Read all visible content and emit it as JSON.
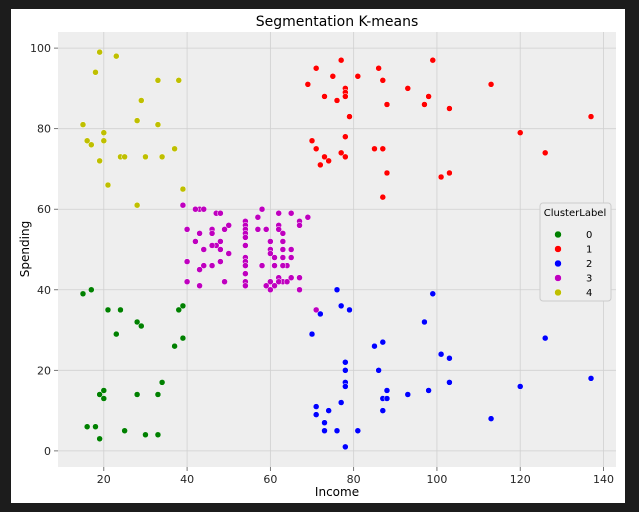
{
  "chart_data": {
    "type": "scatter",
    "title": "Segmentation K-means",
    "xlabel": "Income",
    "ylabel": "Spending",
    "xlim": [
      9,
      143
    ],
    "ylim": [
      -4,
      104
    ],
    "xticks": [
      "20",
      "40",
      "60",
      "80",
      "100",
      "120",
      "140"
    ],
    "yticks": [
      "0",
      "20",
      "40",
      "60",
      "80",
      "100"
    ],
    "grid": true,
    "legend": {
      "title": "ClusterLabel",
      "placement": "right"
    },
    "series": [
      {
        "name": "0",
        "color": "#008000",
        "points": [
          [
            15,
            39
          ],
          [
            17,
            40
          ],
          [
            21,
            35
          ],
          [
            24,
            35
          ],
          [
            28,
            32
          ],
          [
            29,
            31
          ],
          [
            23,
            29
          ],
          [
            39,
            36
          ],
          [
            38,
            35
          ],
          [
            39,
            28
          ],
          [
            37,
            26
          ],
          [
            34,
            17
          ],
          [
            33,
            14
          ],
          [
            28,
            14
          ],
          [
            19,
            14
          ],
          [
            20,
            15
          ],
          [
            20,
            13
          ],
          [
            16,
            6
          ],
          [
            18,
            6
          ],
          [
            25,
            5
          ],
          [
            30,
            4
          ],
          [
            33,
            4
          ],
          [
            19,
            3
          ]
        ]
      },
      {
        "name": "1",
        "color": "#ff0000",
        "points": [
          [
            77,
            97
          ],
          [
            99,
            97
          ],
          [
            71,
            95
          ],
          [
            86,
            95
          ],
          [
            75,
            93
          ],
          [
            81,
            93
          ],
          [
            87,
            92
          ],
          [
            69,
            91
          ],
          [
            113,
            91
          ],
          [
            78,
            90
          ],
          [
            78,
            89
          ],
          [
            93,
            90
          ],
          [
            73,
            88
          ],
          [
            78,
            88
          ],
          [
            98,
            88
          ],
          [
            76,
            87
          ],
          [
            88,
            86
          ],
          [
            97,
            86
          ],
          [
            103,
            85
          ],
          [
            79,
            83
          ],
          [
            137,
            83
          ],
          [
            120,
            79
          ],
          [
            78,
            78
          ],
          [
            70,
            77
          ],
          [
            71,
            75
          ],
          [
            85,
            75
          ],
          [
            87,
            75
          ],
          [
            126,
            74
          ],
          [
            77,
            74
          ],
          [
            73,
            73
          ],
          [
            78,
            73
          ],
          [
            74,
            72
          ],
          [
            72,
            71
          ],
          [
            88,
            69
          ],
          [
            103,
            69
          ],
          [
            101,
            68
          ],
          [
            87,
            63
          ]
        ]
      },
      {
        "name": "2",
        "color": "#0000ff",
        "points": [
          [
            76,
            40
          ],
          [
            99,
            39
          ],
          [
            79,
            35
          ],
          [
            71,
            35
          ],
          [
            72,
            34
          ],
          [
            77,
            36
          ],
          [
            97,
            32
          ],
          [
            70,
            29
          ],
          [
            126,
            28
          ],
          [
            87,
            27
          ],
          [
            85,
            26
          ],
          [
            101,
            24
          ],
          [
            103,
            23
          ],
          [
            78,
            22
          ],
          [
            78,
            20
          ],
          [
            86,
            20
          ],
          [
            137,
            18
          ],
          [
            78,
            17
          ],
          [
            103,
            17
          ],
          [
            78,
            16
          ],
          [
            120,
            16
          ],
          [
            88,
            15
          ],
          [
            98,
            15
          ],
          [
            93,
            14
          ],
          [
            87,
            13
          ],
          [
            88,
            13
          ],
          [
            77,
            12
          ],
          [
            71,
            11
          ],
          [
            74,
            10
          ],
          [
            87,
            10
          ],
          [
            71,
            9
          ],
          [
            113,
            8
          ],
          [
            73,
            7
          ],
          [
            73,
            5
          ],
          [
            76,
            5
          ],
          [
            81,
            5
          ],
          [
            78,
            1
          ]
        ]
      },
      {
        "name": "3",
        "color": "#bf00bf",
        "points": [
          [
            39,
            61
          ],
          [
            43,
            60
          ],
          [
            42,
            60
          ],
          [
            58,
            60
          ],
          [
            47,
            59
          ],
          [
            48,
            59
          ],
          [
            62,
            59
          ],
          [
            65,
            59
          ],
          [
            69,
            58
          ],
          [
            57,
            58
          ],
          [
            54,
            57
          ],
          [
            67,
            57
          ],
          [
            44,
            60
          ],
          [
            50,
            56
          ],
          [
            54,
            56
          ],
          [
            62,
            56
          ],
          [
            67,
            56
          ],
          [
            40,
            55
          ],
          [
            46,
            55
          ],
          [
            49,
            55
          ],
          [
            54,
            55
          ],
          [
            57,
            55
          ],
          [
            59,
            55
          ],
          [
            62,
            55
          ],
          [
            46,
            54
          ],
          [
            43,
            54
          ],
          [
            54,
            54
          ],
          [
            63,
            54
          ],
          [
            54,
            53
          ],
          [
            48,
            52
          ],
          [
            42,
            52
          ],
          [
            63,
            52
          ],
          [
            60,
            52
          ],
          [
            47,
            51
          ],
          [
            54,
            51
          ],
          [
            46,
            51
          ],
          [
            48,
            50
          ],
          [
            44,
            50
          ],
          [
            60,
            50
          ],
          [
            63,
            50
          ],
          [
            65,
            50
          ],
          [
            60,
            49
          ],
          [
            50,
            49
          ],
          [
            63,
            48
          ],
          [
            54,
            48
          ],
          [
            61,
            48
          ],
          [
            48,
            47
          ],
          [
            65,
            48
          ],
          [
            64,
            46
          ],
          [
            40,
            47
          ],
          [
            54,
            47
          ],
          [
            54,
            46
          ],
          [
            61,
            46
          ],
          [
            63,
            46
          ],
          [
            58,
            46
          ],
          [
            46,
            46
          ],
          [
            44,
            46
          ],
          [
            43,
            45
          ],
          [
            54,
            44
          ],
          [
            67,
            43
          ],
          [
            62,
            43
          ],
          [
            63,
            42
          ],
          [
            65,
            43
          ],
          [
            64,
            42
          ],
          [
            60,
            42
          ],
          [
            49,
            42
          ],
          [
            54,
            42
          ],
          [
            40,
            42
          ],
          [
            62,
            42
          ],
          [
            59,
            41
          ],
          [
            61,
            41
          ],
          [
            54,
            41
          ],
          [
            43,
            41
          ],
          [
            60,
            40
          ],
          [
            67,
            40
          ],
          [
            71,
            35
          ]
        ]
      },
      {
        "name": "4",
        "color": "#bfbf00",
        "points": [
          [
            19,
            99
          ],
          [
            23,
            98
          ],
          [
            18,
            94
          ],
          [
            33,
            92
          ],
          [
            38,
            92
          ],
          [
            29,
            87
          ],
          [
            15,
            81
          ],
          [
            33,
            81
          ],
          [
            28,
            82
          ],
          [
            20,
            79
          ],
          [
            16,
            77
          ],
          [
            20,
            77
          ],
          [
            17,
            76
          ],
          [
            37,
            75
          ],
          [
            24,
            73
          ],
          [
            25,
            73
          ],
          [
            30,
            73
          ],
          [
            34,
            73
          ],
          [
            19,
            72
          ],
          [
            21,
            66
          ],
          [
            39,
            65
          ],
          [
            28,
            61
          ]
        ]
      }
    ]
  }
}
